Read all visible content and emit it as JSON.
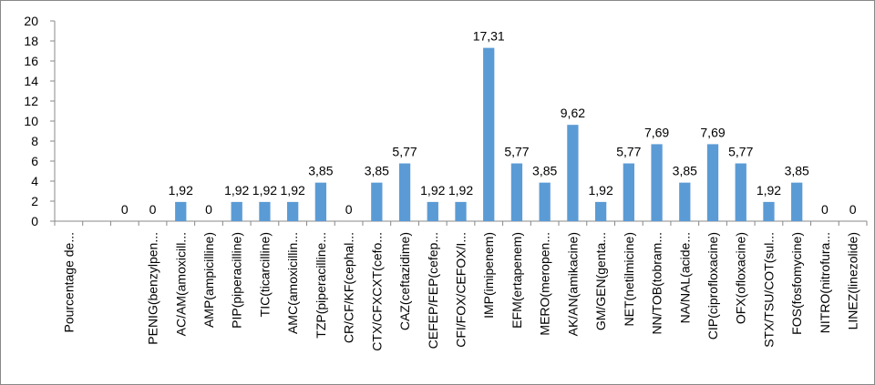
{
  "chart_data": {
    "type": "bar",
    "categories": [
      "Pourcentage de...",
      null,
      null,
      "PENIG(benzylpen...",
      "AC/AM(amoxicill...",
      "AMP(ampicilline)",
      "PIP(piperacilline)",
      "TIC(ticarcilline)",
      "AMC(amoxicillin...",
      "TZP(piperacilline...",
      "CR/CF/KF(cephal...",
      "CTX/CFXCXT(cefo...",
      "CAZ(ceftazidime)",
      "CEFEP/FEP(cefep...",
      "CFI/FOX/CEFOX/I...",
      "IMP(imipenem)",
      "EFM(ertapenem)",
      "MERO(meropen...",
      "AK/AN(amikacine)",
      "GM/GEN(genta...",
      "NET(netilmicine)",
      "NN/TOB(tobram...",
      "NA/NAL(acide...",
      "CIP(ciprofloxacine)",
      "OFX(ofloxacine)",
      "STX/TSU/COT(sul...",
      "FOS(fosfomycine)",
      "NITRO(nitrofura...",
      "LINEZ(linezolide)"
    ],
    "values": [
      null,
      null,
      0,
      0,
      1.92,
      0,
      1.92,
      1.92,
      1.92,
      3.85,
      0,
      3.85,
      5.77,
      1.92,
      1.92,
      17.31,
      5.77,
      3.85,
      9.62,
      1.92,
      5.77,
      7.69,
      3.85,
      7.69,
      5.77,
      1.92,
      3.85,
      0,
      0
    ],
    "value_labels": [
      null,
      null,
      "0",
      "0",
      "1,92",
      "0",
      "1,92",
      "1,92",
      "1,92",
      "3,85",
      "0",
      "3,85",
      "5,77",
      "1,92",
      "1,92",
      "17,31",
      "5,77",
      "3,85",
      "9,62",
      "1,92",
      "5,77",
      "7,69",
      "3,85",
      "7,69",
      "5,77",
      "1,92",
      "3,85",
      "0",
      "0"
    ],
    "color": "#5b9bd5",
    "ylim": [
      0,
      20
    ],
    "yticks": [
      0,
      2,
      4,
      6,
      8,
      10,
      12,
      14,
      16,
      18,
      20
    ]
  }
}
